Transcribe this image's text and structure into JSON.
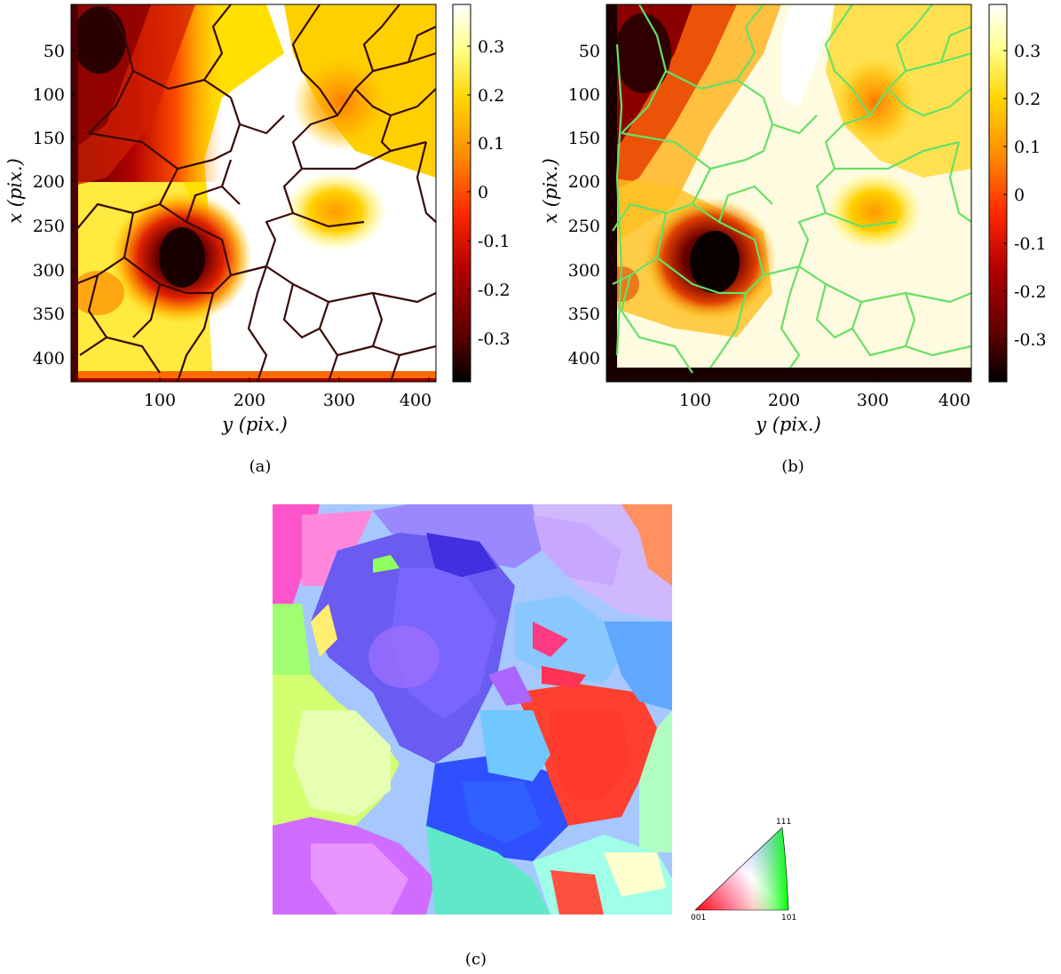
{
  "panels": [
    {
      "id": "a",
      "caption": "(a)",
      "xlabel": "y (pix.)",
      "ylabel": "x (pix.)",
      "x_ticks": [
        "100",
        "200",
        "300",
        "400"
      ],
      "y_ticks": [
        "50",
        "100",
        "150",
        "200",
        "250",
        "300",
        "350",
        "400"
      ],
      "colorbar_ticks": [
        "0.3",
        "0.2",
        "0.1",
        "0",
        "-0.1",
        "-0.2",
        "-0.3"
      ],
      "boundary_color": "#3a0a0a"
    },
    {
      "id": "b",
      "caption": "(b)",
      "xlabel": "y (pix.)",
      "ylabel": "x (pix.)",
      "x_ticks": [
        "100",
        "200",
        "300",
        "400"
      ],
      "y_ticks": [
        "50",
        "100",
        "150",
        "200",
        "250",
        "300",
        "350",
        "400"
      ],
      "colorbar_ticks": [
        "0.3",
        "0.2",
        "0.1",
        "0",
        "-0.1",
        "-0.2",
        "-0.3"
      ],
      "boundary_color": "#66e066"
    },
    {
      "id": "c",
      "caption": "(c)",
      "ipf_legend": {
        "corner_001": "001",
        "corner_101": "101",
        "corner_111": "111"
      }
    }
  ],
  "colors": {
    "colormap": [
      "#000000",
      "#5a0000",
      "#b40000",
      "#ff3300",
      "#ff9a00",
      "#ffe000",
      "#ffffa0",
      "#ffffff"
    ]
  },
  "chart_data": [
    {
      "type": "heatmap",
      "title": "",
      "xlabel": "y (pix.)",
      "ylabel": "x (pix.)",
      "xlim": [
        0,
        410
      ],
      "ylim": [
        0,
        425
      ],
      "x_ticks": [
        100,
        200,
        300,
        400
      ],
      "y_ticks": [
        50,
        100,
        150,
        200,
        250,
        300,
        350,
        400
      ],
      "colorbar": {
        "range": [
          -0.38,
          0.38
        ],
        "ticks": [
          0.3,
          0.2,
          0.1,
          0,
          -0.1,
          -0.2,
          -0.3
        ],
        "colormap": "hot"
      },
      "features": [
        {
          "y": 125,
          "x": 295,
          "value": -0.38
        },
        {
          "y": 35,
          "x": 40,
          "value": -0.35
        },
        {
          "y": 295,
          "x": 235,
          "value": 0.22
        },
        {
          "y": 300,
          "x": 110,
          "value": 0.15
        }
      ]
    },
    {
      "type": "heatmap",
      "title": "",
      "xlabel": "y (pix.)",
      "ylabel": "x (pix.)",
      "xlim": [
        0,
        410
      ],
      "ylim": [
        0,
        425
      ],
      "x_ticks": [
        100,
        200,
        300,
        400
      ],
      "y_ticks": [
        50,
        100,
        150,
        200,
        250,
        300,
        350,
        400
      ],
      "colorbar": {
        "range": [
          -0.38,
          0.38
        ],
        "ticks": [
          0.3,
          0.2,
          0.1,
          0,
          -0.1,
          -0.2,
          -0.3
        ],
        "colormap": "hot"
      },
      "features": [
        {
          "y": 120,
          "x": 300,
          "value": -0.38
        },
        {
          "y": 45,
          "x": 50,
          "value": -0.38
        },
        {
          "y": 300,
          "x": 240,
          "value": 0.22
        },
        {
          "y": 305,
          "x": 105,
          "value": 0.15
        }
      ]
    }
  ]
}
